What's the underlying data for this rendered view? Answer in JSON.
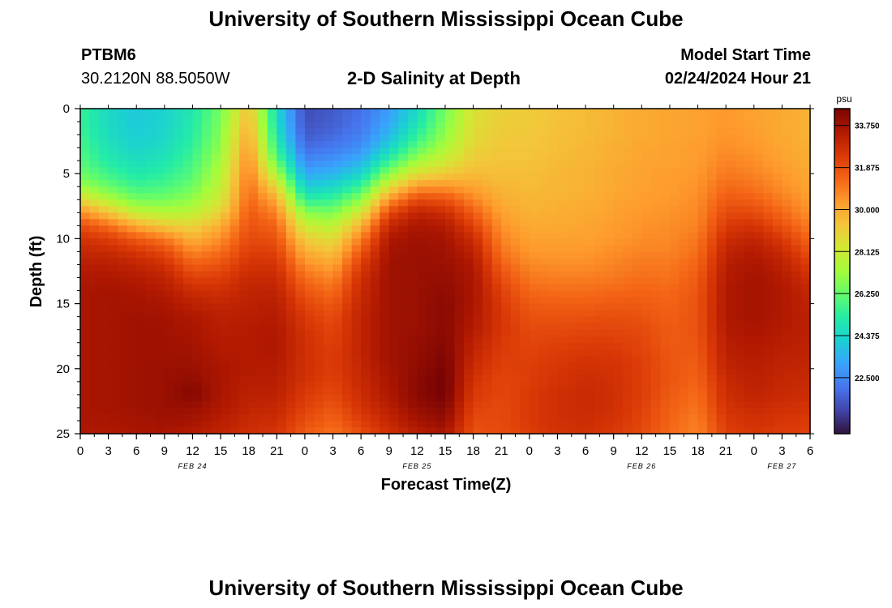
{
  "header": {
    "title": "University of Southern Mississippi Ocean Cube",
    "station_id": "PTBM6",
    "station_coords": "30.2120N  88.5050W",
    "plot_subtitle": "2-D Salinity at Depth",
    "model_start_label": "Model Start Time",
    "model_start_value": "02/24/2024 Hour 21"
  },
  "footer": {
    "title": "University of Southern Mississippi Ocean Cube"
  },
  "colors": {
    "colormap": [
      "#30123b",
      "#4145ab",
      "#4675ed",
      "#39a2fc",
      "#1bcfd4",
      "#24eca6",
      "#61fc6c",
      "#a4fc3b",
      "#d1e834",
      "#f3c63a",
      "#fe9b2d",
      "#f36315",
      "#d93806",
      "#b11901",
      "#7a0403"
    ]
  },
  "chart_data": {
    "type": "heatmap",
    "title": "2-D Salinity at Depth",
    "xlabel": "Forecast Time(Z)",
    "ylabel": "Depth (ft)",
    "x_range_hours": [
      0,
      78
    ],
    "ylim": [
      0,
      25
    ],
    "y_ticks": [
      0,
      5,
      10,
      15,
      20,
      25
    ],
    "x_tick_labels": [
      "0",
      "3",
      "6",
      "9",
      "12",
      "15",
      "18",
      "21",
      "0",
      "3",
      "6",
      "9",
      "12",
      "15",
      "18",
      "21",
      "0",
      "3",
      "6",
      "9",
      "12",
      "15",
      "18",
      "21",
      "0",
      "3",
      "6"
    ],
    "date_labels": [
      {
        "label": "FEB 24",
        "hour": 12
      },
      {
        "label": "FEB 25",
        "hour": 36
      },
      {
        "label": "FEB 26",
        "hour": 60
      },
      {
        "label": "FEB 27",
        "hour": 75
      }
    ],
    "colorbar": {
      "unit": "psu",
      "min": 20.0,
      "max": 34.5,
      "ticks": [
        33.75,
        31.875,
        30.0,
        28.125,
        26.25,
        24.375,
        22.5
      ],
      "tick_labels": [
        "33.750",
        "31.875",
        "30.000",
        "28.125",
        "26.250",
        "24.375",
        "22.500"
      ]
    },
    "depth_levels_ft": [
      0,
      1,
      2,
      3,
      4,
      5,
      6,
      7,
      8,
      9,
      10,
      11,
      12,
      13,
      14,
      15,
      16,
      17,
      18,
      19,
      20,
      21,
      22,
      23,
      24,
      25
    ],
    "profiles": [
      {
        "hour": 0,
        "salinity": [
          25.5,
          25.5,
          25.6,
          25.8,
          26.0,
          26.4,
          27.2,
          28.8,
          30.6,
          31.9,
          32.6,
          33.0,
          33.3,
          33.5,
          33.6,
          33.6,
          33.6,
          33.6,
          33.6,
          33.6,
          33.6,
          33.6,
          33.6,
          33.6,
          33.6,
          33.5
        ]
      },
      {
        "hour": 3,
        "salinity": [
          24.5,
          24.5,
          24.6,
          24.8,
          25.1,
          25.6,
          26.3,
          27.6,
          29.4,
          31.2,
          32.3,
          32.9,
          33.3,
          33.5,
          33.7,
          33.7,
          33.7,
          33.7,
          33.7,
          33.7,
          33.7,
          33.7,
          33.7,
          33.7,
          33.6,
          33.5
        ]
      },
      {
        "hour": 6,
        "salinity": [
          24.0,
          24.0,
          24.1,
          24.3,
          24.6,
          25.0,
          25.6,
          26.5,
          28.0,
          30.0,
          31.6,
          32.5,
          33.1,
          33.4,
          33.6,
          33.7,
          33.8,
          33.8,
          33.8,
          33.8,
          33.8,
          33.8,
          33.8,
          33.8,
          33.7,
          33.6
        ]
      },
      {
        "hour": 9,
        "salinity": [
          24.3,
          24.3,
          24.4,
          24.6,
          24.9,
          25.3,
          25.8,
          26.5,
          27.6,
          29.2,
          31.0,
          32.0,
          32.7,
          33.1,
          33.4,
          33.6,
          33.7,
          33.8,
          33.8,
          33.8,
          33.9,
          33.9,
          33.9,
          33.9,
          33.8,
          33.6
        ]
      },
      {
        "hour": 12,
        "salinity": [
          25.0,
          25.1,
          25.2,
          25.4,
          25.7,
          26.0,
          26.4,
          27.0,
          27.8,
          28.9,
          29.8,
          30.7,
          31.5,
          32.2,
          32.8,
          33.2,
          33.5,
          33.6,
          33.7,
          33.8,
          33.9,
          34.1,
          34.3,
          33.9,
          33.7,
          33.4
        ]
      },
      {
        "hour": 15,
        "salinity": [
          26.5,
          26.6,
          26.8,
          27.0,
          27.3,
          27.6,
          27.9,
          28.3,
          29.0,
          29.9,
          30.6,
          31.2,
          31.8,
          32.3,
          32.7,
          33.0,
          33.2,
          33.3,
          33.4,
          33.5,
          33.6,
          33.6,
          33.6,
          33.5,
          33.3,
          33.1
        ]
      },
      {
        "hour": 18,
        "salinity": [
          29.5,
          29.8,
          30.1,
          30.4,
          30.7,
          31.0,
          31.2,
          31.4,
          31.6,
          31.8,
          32.0,
          32.3,
          32.6,
          32.9,
          33.1,
          33.2,
          33.3,
          33.4,
          33.4,
          33.4,
          33.4,
          33.3,
          33.2,
          33.1,
          32.9,
          32.7
        ]
      },
      {
        "hour": 21,
        "salinity": [
          24.5,
          24.6,
          24.9,
          25.4,
          26.2,
          27.4,
          28.8,
          30.0,
          30.8,
          31.4,
          31.8,
          32.2,
          32.6,
          32.9,
          33.1,
          33.3,
          33.4,
          33.5,
          33.5,
          33.5,
          33.4,
          33.3,
          33.2,
          33.0,
          32.8,
          32.6
        ]
      },
      {
        "hour": 24,
        "salinity": [
          21.2,
          21.3,
          21.5,
          21.9,
          22.5,
          23.2,
          24.1,
          25.3,
          26.8,
          28.1,
          29.1,
          29.9,
          30.6,
          31.2,
          31.7,
          32.1,
          32.4,
          32.6,
          32.7,
          32.7,
          32.7,
          32.6,
          32.4,
          32.2,
          31.9,
          31.6
        ]
      },
      {
        "hour": 27,
        "salinity": [
          21.5,
          21.6,
          21.8,
          22.2,
          22.8,
          23.5,
          24.4,
          25.5,
          26.6,
          27.7,
          28.6,
          29.4,
          30.1,
          30.7,
          31.2,
          31.6,
          31.9,
          32.1,
          32.2,
          32.3,
          32.3,
          32.2,
          32.0,
          31.7,
          31.4,
          31.1
        ]
      },
      {
        "hour": 30,
        "salinity": [
          22.0,
          22.1,
          22.3,
          22.7,
          23.4,
          24.3,
          25.5,
          26.9,
          28.4,
          29.8,
          30.9,
          31.7,
          32.3,
          32.7,
          32.9,
          33.0,
          33.1,
          33.1,
          33.1,
          33.1,
          33.0,
          32.9,
          32.8,
          32.6,
          32.3,
          31.9
        ]
      },
      {
        "hour": 33,
        "salinity": [
          23.0,
          23.2,
          23.6,
          24.3,
          25.4,
          26.9,
          28.6,
          30.5,
          32.0,
          33.0,
          33.5,
          33.7,
          33.8,
          33.8,
          33.8,
          33.8,
          33.8,
          33.8,
          33.8,
          33.8,
          33.7,
          33.6,
          33.5,
          33.3,
          33.0,
          32.7
        ]
      },
      {
        "hour": 36,
        "salinity": [
          24.5,
          24.8,
          25.3,
          26.1,
          27.2,
          28.6,
          30.4,
          32.0,
          33.1,
          33.6,
          33.8,
          33.9,
          33.9,
          33.9,
          33.9,
          33.9,
          33.9,
          33.9,
          34.0,
          34.0,
          34.1,
          34.2,
          34.2,
          34.0,
          33.7,
          33.3
        ]
      },
      {
        "hour": 39,
        "salinity": [
          26.5,
          26.7,
          27.0,
          27.5,
          28.2,
          29.2,
          30.5,
          31.8,
          32.8,
          33.4,
          33.7,
          33.8,
          33.9,
          34.0,
          34.1,
          34.2,
          34.2,
          34.2,
          34.3,
          34.4,
          34.5,
          34.6,
          34.6,
          34.3,
          34.0,
          33.6
        ]
      },
      {
        "hour": 42,
        "salinity": [
          28.5,
          28.6,
          28.7,
          28.9,
          29.2,
          29.6,
          30.1,
          30.8,
          31.5,
          32.2,
          32.8,
          33.2,
          33.5,
          33.6,
          33.6,
          33.6,
          33.5,
          33.4,
          33.2,
          33.0,
          32.8,
          32.6,
          32.4,
          32.2,
          32.0,
          31.8
        ]
      },
      {
        "hour": 45,
        "salinity": [
          29.0,
          29.1,
          29.2,
          29.3,
          29.4,
          29.5,
          29.7,
          29.9,
          30.2,
          30.5,
          30.8,
          31.1,
          31.5,
          31.9,
          32.2,
          32.4,
          32.5,
          32.5,
          32.4,
          32.3,
          32.2,
          32.1,
          32.1,
          32.0,
          32.0,
          31.9
        ]
      },
      {
        "hour": 48,
        "salinity": [
          29.2,
          29.2,
          29.3,
          29.3,
          29.4,
          29.5,
          29.6,
          29.7,
          29.8,
          30.0,
          30.2,
          30.4,
          30.7,
          31.0,
          31.3,
          31.6,
          31.8,
          32.0,
          32.1,
          32.2,
          32.3,
          32.3,
          32.4,
          32.4,
          32.4,
          32.3
        ]
      },
      {
        "hour": 51,
        "salinity": [
          29.4,
          29.4,
          29.5,
          29.5,
          29.6,
          29.7,
          29.7,
          29.8,
          29.9,
          30.0,
          30.2,
          30.4,
          30.6,
          30.9,
          31.2,
          31.5,
          31.8,
          32.0,
          32.2,
          32.4,
          32.5,
          32.6,
          32.7,
          32.7,
          32.7,
          32.6
        ]
      },
      {
        "hour": 54,
        "salinity": [
          29.6,
          29.6,
          29.6,
          29.7,
          29.7,
          29.8,
          29.8,
          29.9,
          30.0,
          30.1,
          30.2,
          30.4,
          30.6,
          30.9,
          31.2,
          31.5,
          31.8,
          32.1,
          32.3,
          32.5,
          32.7,
          32.8,
          32.9,
          32.9,
          32.8,
          32.7
        ]
      },
      {
        "hour": 57,
        "salinity": [
          29.8,
          29.8,
          29.8,
          29.9,
          29.9,
          30.0,
          30.0,
          30.1,
          30.2,
          30.3,
          30.4,
          30.6,
          30.8,
          31.0,
          31.3,
          31.6,
          31.9,
          32.1,
          32.3,
          32.5,
          32.6,
          32.7,
          32.7,
          32.7,
          32.6,
          32.4
        ]
      },
      {
        "hour": 60,
        "salinity": [
          30.0,
          30.0,
          30.0,
          30.1,
          30.1,
          30.2,
          30.2,
          30.3,
          30.4,
          30.5,
          30.6,
          30.8,
          31.0,
          31.2,
          31.4,
          31.6,
          31.8,
          32.0,
          32.1,
          32.2,
          32.3,
          32.3,
          32.3,
          32.2,
          32.1,
          32.0
        ]
      },
      {
        "hour": 63,
        "salinity": [
          30.1,
          30.1,
          30.1,
          30.2,
          30.2,
          30.3,
          30.3,
          30.4,
          30.5,
          30.6,
          30.7,
          30.8,
          31.0,
          31.1,
          31.3,
          31.4,
          31.5,
          31.6,
          31.6,
          31.7,
          31.7,
          31.7,
          31.6,
          31.5,
          31.4,
          31.3
        ]
      },
      {
        "hour": 66,
        "salinity": [
          30.2,
          30.2,
          30.2,
          30.3,
          30.3,
          30.4,
          30.5,
          30.6,
          30.7,
          30.8,
          31.0,
          31.2,
          31.4,
          31.6,
          31.7,
          31.8,
          31.8,
          31.8,
          31.7,
          31.6,
          31.5,
          31.4,
          31.2,
          31.1,
          30.9,
          30.8
        ]
      },
      {
        "hour": 69,
        "salinity": [
          30.4,
          30.4,
          30.5,
          30.6,
          30.8,
          31.0,
          31.3,
          31.6,
          32.0,
          32.4,
          32.8,
          33.1,
          33.3,
          33.4,
          33.5,
          33.5,
          33.5,
          33.4,
          33.3,
          33.2,
          33.1,
          32.9,
          32.8,
          32.6,
          32.4,
          32.2
        ]
      },
      {
        "hour": 72,
        "salinity": [
          30.2,
          30.2,
          30.3,
          30.4,
          30.6,
          30.8,
          31.1,
          31.5,
          32.0,
          32.6,
          33.1,
          33.4,
          33.6,
          33.7,
          33.7,
          33.7,
          33.7,
          33.6,
          33.5,
          33.4,
          33.3,
          33.2,
          33.1,
          32.9,
          32.7,
          32.5
        ]
      },
      {
        "hour": 75,
        "salinity": [
          30.0,
          30.0,
          30.0,
          30.1,
          30.2,
          30.4,
          30.6,
          30.9,
          31.3,
          31.8,
          32.4,
          32.9,
          33.2,
          33.4,
          33.5,
          33.5,
          33.5,
          33.4,
          33.3,
          33.2,
          33.1,
          33.0,
          32.9,
          32.7,
          32.5,
          32.3
        ]
      },
      {
        "hour": 78,
        "salinity": [
          29.8,
          29.8,
          29.8,
          29.9,
          29.9,
          30.0,
          30.1,
          30.3,
          30.5,
          30.9,
          31.3,
          31.8,
          32.3,
          32.7,
          33.0,
          33.1,
          33.2,
          33.2,
          33.2,
          33.1,
          33.0,
          32.9,
          32.8,
          32.6,
          32.4,
          32.2
        ]
      }
    ]
  }
}
